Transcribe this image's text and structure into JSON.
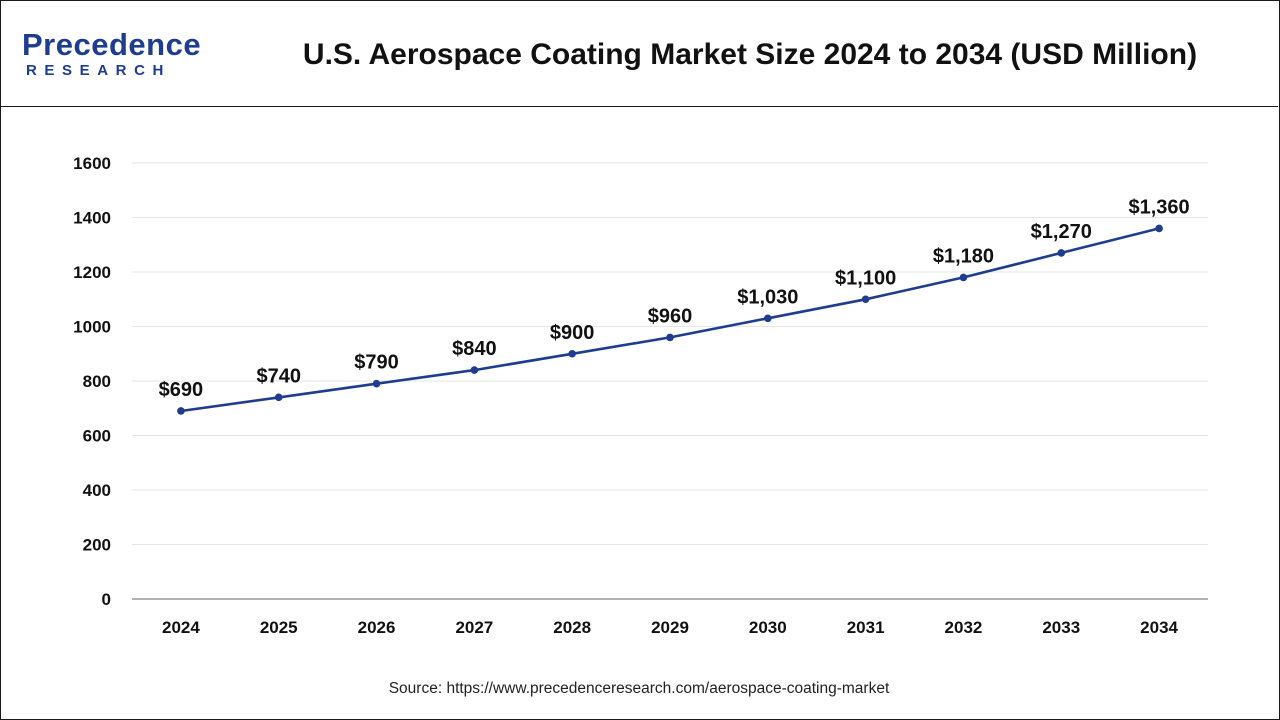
{
  "header": {
    "logo_main": "Precedence",
    "logo_sub": "RESEARCH",
    "title": "U.S. Aerospace Coating Market Size 2024 to 2034 (USD Million)"
  },
  "source": "Source: https://www.precedenceresearch.com/aerospace-coating-market",
  "colors": {
    "line": "#1f3d8f",
    "grid": "#e6e6e6",
    "axis": "#9a9a9a",
    "brand": "#1f3d8f"
  },
  "chart_data": {
    "type": "line",
    "title": "U.S. Aerospace Coating Market Size 2024 to 2034 (USD Million)",
    "xlabel": "",
    "ylabel": "",
    "categories": [
      "2024",
      "2025",
      "2026",
      "2027",
      "2028",
      "2029",
      "2030",
      "2031",
      "2032",
      "2033",
      "2034"
    ],
    "values": [
      690,
      740,
      790,
      840,
      900,
      960,
      1030,
      1100,
      1180,
      1270,
      1360
    ],
    "data_labels": [
      "$690",
      "$740",
      "$790",
      "$840",
      "$900",
      "$960",
      "$1,030",
      "$1,100",
      "$1,180",
      "$1,270",
      "$1,360"
    ],
    "ylim": [
      0,
      1600
    ],
    "yticks": [
      0,
      200,
      400,
      600,
      800,
      1000,
      1200,
      1400,
      1600
    ],
    "grid": true,
    "legend": "none"
  }
}
